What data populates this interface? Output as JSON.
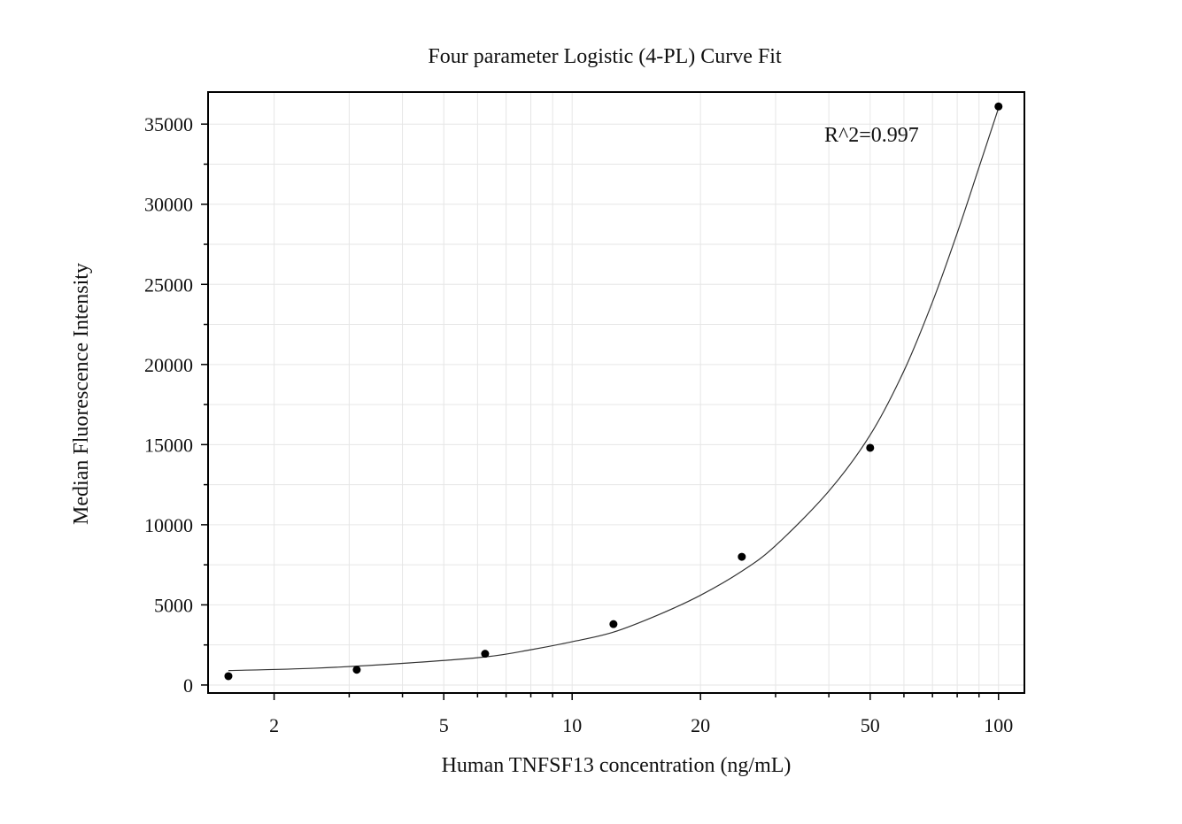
{
  "chart_data": {
    "type": "scatter",
    "title": "Four parameter Logistic (4-PL) Curve Fit",
    "xlabel": "Human TNFSF13 concentration (ng/mL)",
    "ylabel": "Median Fluorescence Intensity",
    "x_scale": "log",
    "xlim": [
      1.4,
      115
    ],
    "ylim": [
      -500,
      37000
    ],
    "x_ticks": [
      2,
      5,
      10,
      20,
      50,
      100
    ],
    "x_tick_labels": [
      "2",
      "5",
      "10",
      "20",
      "50",
      "100"
    ],
    "y_ticks": [
      0,
      5000,
      10000,
      15000,
      20000,
      25000,
      30000,
      35000
    ],
    "y_tick_labels": [
      "0",
      "5000",
      "10000",
      "15000",
      "20000",
      "25000",
      "30000",
      "35000"
    ],
    "grid": true,
    "annotation": "R^2=0.997",
    "series": [
      {
        "x": [
          1.5625,
          3.125,
          6.25,
          12.5,
          25,
          50,
          100
        ],
        "values": [
          550,
          950,
          1950,
          3800,
          8000,
          14800,
          36100
        ]
      }
    ],
    "fit_curve": {
      "x": [
        1.5625,
        2.5,
        4,
        6.25,
        8,
        10,
        12.5,
        16,
        20,
        25,
        30,
        40,
        50,
        60,
        70,
        80,
        90,
        100
      ],
      "values": [
        900,
        1050,
        1350,
        1750,
        2200,
        2700,
        3300,
        4400,
        5600,
        7100,
        8700,
        12100,
        15600,
        19600,
        23900,
        28200,
        32300,
        36000
      ]
    },
    "colors": {
      "points": "#000000",
      "curve": "#333333",
      "grid": "#e6e6e6",
      "frame": "#000000"
    }
  }
}
